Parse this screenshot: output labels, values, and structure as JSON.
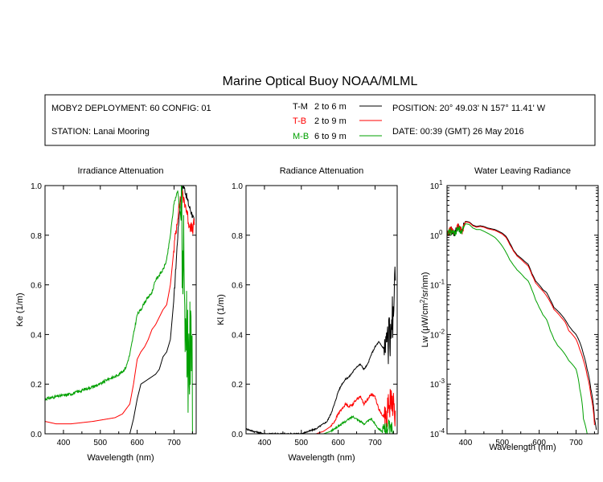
{
  "title": "Marine Optical Buoy NOAA/MLML",
  "header": {
    "deployment": "MOBY2 DEPLOYMENT: 60 CONFIG: 01",
    "station": "STATION: Lanai Mooring",
    "position": "POSITION: 20° 49.03' N   157° 11.41' W",
    "date": "DATE: 00:39 (GMT) 26 May 2016",
    "legend": [
      {
        "label": "T-M",
        "range": "2 to 6  m",
        "color": "#000000"
      },
      {
        "label": "T-B",
        "range": "2 to 9  m",
        "color": "#ff0000"
      },
      {
        "label": "M-B",
        "range": "6 to 9  m",
        "color": "#00a000"
      }
    ]
  },
  "chart_data": [
    {
      "type": "line",
      "title": "Irradiance Attenuation",
      "xlabel": "Wavelength (nm)",
      "ylabel": "Ke  (1/m)",
      "xlim": [
        350,
        760
      ],
      "ylim": [
        0,
        1
      ],
      "xticks": [
        400,
        500,
        600,
        700
      ],
      "yticks": [
        0.0,
        0.2,
        0.4,
        0.6,
        0.8,
        1.0
      ],
      "ytick_labels": [
        "0.0",
        "0.2",
        "0.4",
        "0.6",
        "0.8",
        "1.0"
      ],
      "series": [
        {
          "name": "T-M",
          "color": "#000000",
          "noise": 0.03,
          "noise_start": 700,
          "x": [
            580,
            590,
            600,
            610,
            620,
            630,
            640,
            650,
            660,
            670,
            680,
            690,
            700,
            710,
            715,
            720,
            725,
            730,
            740,
            750,
            755
          ],
          "values": [
            0.0,
            0.06,
            0.14,
            0.2,
            0.21,
            0.22,
            0.23,
            0.24,
            0.26,
            0.31,
            0.33,
            0.38,
            0.55,
            0.8,
            0.9,
            0.97,
            1.0,
            0.98,
            0.92,
            0.88,
            0.85
          ]
        },
        {
          "name": "T-B",
          "color": "#ff0000",
          "noise": 0.05,
          "noise_start": 700,
          "x": [
            350,
            380,
            420,
            450,
            480,
            500,
            520,
            540,
            560,
            580,
            590,
            600,
            610,
            620,
            630,
            640,
            650,
            660,
            670,
            680,
            690,
            700,
            710,
            720,
            730,
            740,
            750,
            755
          ],
          "values": [
            0.05,
            0.04,
            0.04,
            0.045,
            0.05,
            0.055,
            0.06,
            0.065,
            0.08,
            0.12,
            0.2,
            0.3,
            0.33,
            0.35,
            0.38,
            0.42,
            0.44,
            0.47,
            0.5,
            0.52,
            0.6,
            0.75,
            0.88,
            0.97,
            0.93,
            0.85,
            0.82,
            0.85
          ]
        },
        {
          "name": "M-B",
          "color": "#00a000",
          "noise": 0.012,
          "noise_start": 350,
          "big_noise": 0.28,
          "big_noise_start": 720,
          "x": [
            350,
            380,
            420,
            460,
            480,
            500,
            520,
            540,
            560,
            570,
            580,
            590,
            600,
            610,
            620,
            630,
            640,
            650,
            660,
            670,
            680,
            690,
            700,
            710,
            720,
            730,
            740,
            750
          ],
          "values": [
            0.14,
            0.15,
            0.16,
            0.18,
            0.19,
            0.2,
            0.22,
            0.23,
            0.25,
            0.27,
            0.32,
            0.4,
            0.48,
            0.5,
            0.53,
            0.55,
            0.57,
            0.62,
            0.64,
            0.66,
            0.7,
            0.8,
            0.93,
            0.98,
            0.85,
            0.5,
            0.3,
            0.2
          ]
        }
      ]
    },
    {
      "type": "line",
      "title": "Radiance Attenuation",
      "xlabel": "Wavelength (nm)",
      "ylabel": "Kl  (1/m)",
      "xlim": [
        350,
        760
      ],
      "ylim": [
        0,
        1
      ],
      "xticks": [
        400,
        500,
        600,
        700
      ],
      "yticks": [
        0.0,
        0.2,
        0.4,
        0.6,
        0.8,
        1.0
      ],
      "ytick_labels": [
        "0.0",
        "0.2",
        "0.4",
        "0.6",
        "0.8",
        "1.0"
      ],
      "series": [
        {
          "name": "T-M",
          "color": "#000000",
          "noise": 0.006,
          "noise_start": 350,
          "big_noise": 0.1,
          "big_noise_start": 725,
          "x": [
            350,
            370,
            400,
            450,
            500,
            520,
            540,
            560,
            570,
            580,
            590,
            600,
            610,
            620,
            630,
            640,
            650,
            660,
            670,
            680,
            690,
            700,
            710,
            720,
            730,
            740,
            750,
            755
          ],
          "values": [
            0.02,
            0.01,
            0.0,
            0.0,
            0.0,
            0.01,
            0.02,
            0.04,
            0.05,
            0.08,
            0.12,
            0.17,
            0.2,
            0.22,
            0.23,
            0.25,
            0.27,
            0.28,
            0.26,
            0.28,
            0.32,
            0.35,
            0.37,
            0.35,
            0.34,
            0.4,
            0.5,
            0.6
          ]
        },
        {
          "name": "T-B",
          "color": "#ff0000",
          "noise": 0.01,
          "noise_start": 580,
          "big_noise": 0.07,
          "big_noise_start": 725,
          "x": [
            500,
            540,
            560,
            580,
            590,
            600,
            610,
            620,
            630,
            640,
            650,
            660,
            670,
            680,
            690,
            700,
            710,
            720,
            730,
            740,
            750,
            755
          ],
          "values": [
            0.0,
            0.0,
            0.01,
            0.03,
            0.05,
            0.08,
            0.1,
            0.12,
            0.11,
            0.12,
            0.14,
            0.15,
            0.12,
            0.14,
            0.16,
            0.15,
            0.1,
            0.07,
            0.09,
            0.12,
            0.14,
            0.05
          ]
        },
        {
          "name": "M-B",
          "color": "#00a000",
          "noise": 0.008,
          "noise_start": 580,
          "big_noise": 0.03,
          "big_noise_start": 720,
          "x": [
            560,
            580,
            590,
            600,
            610,
            620,
            630,
            640,
            650,
            660,
            670,
            680,
            690,
            700,
            710,
            720,
            730,
            740,
            750
          ],
          "values": [
            0.0,
            0.01,
            0.02,
            0.03,
            0.04,
            0.05,
            0.06,
            0.07,
            0.06,
            0.05,
            0.04,
            0.05,
            0.06,
            0.04,
            0.02,
            0.01,
            0.02,
            0.03,
            0.0
          ]
        }
      ]
    },
    {
      "type": "line",
      "title": "Water Leaving Radiance",
      "xlabel": "Wavelength (nm)",
      "ylabel": "Lw  (μW/cm²/sr/nm)",
      "ylabel_parts": {
        "pre": "Lw  (μW/cm",
        "sup": "2",
        "post": "/sr/nm)"
      },
      "log_y": true,
      "xlim": [
        350,
        760
      ],
      "ylim": [
        0.0001,
        10
      ],
      "xticks": [
        400,
        500,
        600,
        700
      ],
      "yticks": [
        0.0001,
        0.001,
        0.01,
        0.1,
        1,
        10
      ],
      "ytick_labels": [
        {
          "base": "10",
          "exp": "-4"
        },
        {
          "base": "10",
          "exp": "-3"
        },
        {
          "base": "10",
          "exp": "-2"
        },
        {
          "base": "10",
          "exp": "-1"
        },
        {
          "base": "10",
          "exp": "0"
        },
        {
          "base": "10",
          "exp": "1"
        }
      ],
      "series": [
        {
          "name": "T-M",
          "color": "#000000",
          "noise": 0.0,
          "noise_start": 760,
          "x": [
            350,
            360,
            370,
            380,
            390,
            400,
            410,
            420,
            430,
            440,
            450,
            460,
            470,
            480,
            490,
            500,
            510,
            520,
            530,
            540,
            550,
            560,
            570,
            580,
            590,
            600,
            610,
            620,
            630,
            640,
            650,
            660,
            670,
            680,
            690,
            700,
            710,
            720,
            730,
            740,
            750,
            755
          ],
          "values": [
            1.0,
            1.3,
            1.1,
            1.5,
            1.2,
            1.9,
            1.85,
            1.6,
            1.5,
            1.55,
            1.5,
            1.4,
            1.35,
            1.3,
            1.2,
            1.1,
            0.95,
            0.7,
            0.5,
            0.4,
            0.35,
            0.3,
            0.26,
            0.17,
            0.12,
            0.1,
            0.08,
            0.07,
            0.05,
            0.035,
            0.03,
            0.025,
            0.02,
            0.015,
            0.012,
            0.01,
            0.007,
            0.004,
            0.002,
            0.0008,
            0.0002,
            0.00012
          ]
        },
        {
          "name": "T-B",
          "color": "#ff0000",
          "noise": 0.0,
          "noise_start": 760,
          "x": [
            350,
            360,
            370,
            380,
            390,
            400,
            410,
            420,
            430,
            440,
            450,
            460,
            470,
            480,
            490,
            500,
            510,
            520,
            530,
            540,
            550,
            560,
            570,
            580,
            590,
            600,
            610,
            620,
            630,
            640,
            650,
            660,
            670,
            680,
            690,
            700,
            710,
            720,
            730,
            740,
            750
          ],
          "values": [
            1.0,
            1.3,
            1.1,
            1.5,
            1.2,
            1.85,
            1.8,
            1.55,
            1.45,
            1.5,
            1.45,
            1.35,
            1.3,
            1.25,
            1.15,
            1.05,
            0.9,
            0.65,
            0.48,
            0.38,
            0.33,
            0.28,
            0.24,
            0.16,
            0.11,
            0.09,
            0.075,
            0.06,
            0.045,
            0.032,
            0.027,
            0.022,
            0.018,
            0.012,
            0.01,
            0.008,
            0.005,
            0.003,
            0.0015,
            0.0006,
            0.00015
          ]
        },
        {
          "name": "M-B",
          "color": "#00a000",
          "noise": 0.0,
          "noise_start": 760,
          "x": [
            350,
            360,
            370,
            380,
            390,
            400,
            410,
            420,
            430,
            440,
            450,
            460,
            470,
            480,
            490,
            500,
            510,
            520,
            530,
            540,
            550,
            560,
            570,
            580,
            590,
            600,
            610,
            620,
            630,
            640,
            650,
            660,
            670,
            680,
            690,
            700,
            710,
            720,
            730
          ],
          "values": [
            1.0,
            1.25,
            1.05,
            1.45,
            1.15,
            1.7,
            1.65,
            1.4,
            1.3,
            1.3,
            1.2,
            1.1,
            1.0,
            0.9,
            0.75,
            0.6,
            0.45,
            0.32,
            0.25,
            0.2,
            0.17,
            0.14,
            0.12,
            0.08,
            0.05,
            0.035,
            0.025,
            0.02,
            0.012,
            0.008,
            0.006,
            0.005,
            0.004,
            0.003,
            0.0025,
            0.002,
            0.0008,
            0.0002,
            0.0001
          ]
        }
      ]
    }
  ]
}
